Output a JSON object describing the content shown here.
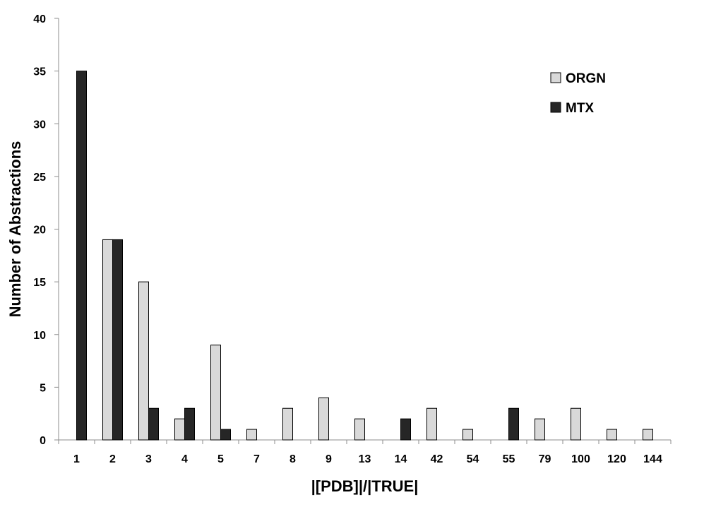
{
  "chart_data": {
    "type": "bar",
    "title": "",
    "xlabel": "|[PDB]|/|TRUE|",
    "ylabel": "Number of Abstractions",
    "ylim": [
      0,
      40
    ],
    "yticks": [
      0,
      5,
      10,
      15,
      20,
      25,
      30,
      35,
      40
    ],
    "grid": false,
    "legend_position": "top-right",
    "categories": [
      "1",
      "2",
      "3",
      "4",
      "5",
      "7",
      "8",
      "9",
      "13",
      "14",
      "42",
      "54",
      "55",
      "79",
      "100",
      "120",
      "144"
    ],
    "series": [
      {
        "name": "ORGN",
        "color": "#d9d9d9",
        "values": [
          0,
          19,
          15,
          2,
          9,
          1,
          3,
          4,
          2,
          0,
          3,
          1,
          0,
          2,
          3,
          1,
          1
        ]
      },
      {
        "name": "MTX",
        "color": "#262626",
        "values": [
          35,
          19,
          3,
          3,
          1,
          0,
          0,
          0,
          0,
          2,
          0,
          0,
          3,
          0,
          0,
          0,
          0
        ]
      }
    ]
  }
}
